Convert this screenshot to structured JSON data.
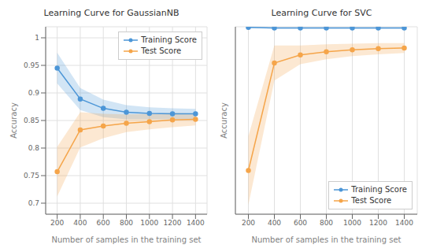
{
  "chart_data": [
    {
      "type": "line",
      "title": "Learning Curve for GaussianNB",
      "xlabel": "Number of samples in the training set",
      "ylabel": "Accuracy",
      "x": [
        200,
        400,
        600,
        800,
        1000,
        1200,
        1400
      ],
      "xlim": [
        100,
        1500
      ],
      "xticks": [
        200,
        400,
        600,
        800,
        1000,
        1200,
        1400
      ],
      "ylim": [
        0.68,
        1.02
      ],
      "yticks": [
        0.7,
        0.75,
        0.8,
        0.85,
        0.9,
        0.95,
        1
      ],
      "grid": true,
      "legend": "upper right",
      "series": [
        {
          "name": "Training Score",
          "color": "#4C96D7",
          "marker": "circle",
          "line_style": "solid",
          "values": [
            0.945,
            0.889,
            0.872,
            0.865,
            0.863,
            0.862,
            0.862
          ],
          "lower": [
            0.917,
            0.869,
            0.856,
            0.852,
            0.852,
            0.852,
            0.853
          ],
          "upper": [
            0.973,
            0.909,
            0.888,
            0.878,
            0.874,
            0.872,
            0.871
          ]
        },
        {
          "name": "Test Score",
          "color": "#F5A54A",
          "marker": "circle",
          "line_style": "solid",
          "values": [
            0.757,
            0.833,
            0.84,
            0.845,
            0.848,
            0.851,
            0.852
          ],
          "lower": [
            0.712,
            0.801,
            0.818,
            0.829,
            0.834,
            0.838,
            0.841
          ],
          "upper": [
            0.802,
            0.865,
            0.862,
            0.861,
            0.862,
            0.864,
            0.863
          ]
        }
      ]
    },
    {
      "type": "line",
      "title": "Learning Curve for SVC",
      "xlabel": "Number of samples in the training set",
      "ylabel": "Accuracy",
      "x": [
        200,
        400,
        600,
        800,
        1000,
        1200,
        1400
      ],
      "xlim": [
        100,
        1500
      ],
      "xticks": [
        200,
        400,
        600,
        800,
        1000,
        1200,
        1400
      ],
      "ylim": [
        0.7,
        1
      ],
      "yticks": [
        0.7,
        0.75,
        0.8,
        0.85,
        0.9,
        0.95,
        1
      ],
      "grid": true,
      "legend": "lower right",
      "tick_labels": "x",
      "series": [
        {
          "name": "Training Score",
          "color": "#4C96D7",
          "marker": "circle",
          "line_style": "solid",
          "values": [
            0.999,
            0.998,
            0.998,
            0.998,
            0.998,
            0.998,
            0.998
          ],
          "lower": [
            0.998,
            0.997,
            0.997,
            0.997,
            0.997,
            0.997,
            0.997
          ],
          "upper": [
            1.0,
            0.999,
            0.999,
            0.999,
            0.999,
            0.999,
            0.999
          ]
        },
        {
          "name": "Test Score",
          "color": "#F5A54A",
          "marker": "circle",
          "line_style": "solid",
          "values": [
            0.77,
            0.942,
            0.955,
            0.96,
            0.963,
            0.965,
            0.966
          ],
          "lower": [
            0.715,
            0.914,
            0.94,
            0.948,
            0.953,
            0.956,
            0.958
          ],
          "upper": [
            0.825,
            0.97,
            0.97,
            0.972,
            0.973,
            0.974,
            0.974
          ]
        }
      ]
    }
  ]
}
